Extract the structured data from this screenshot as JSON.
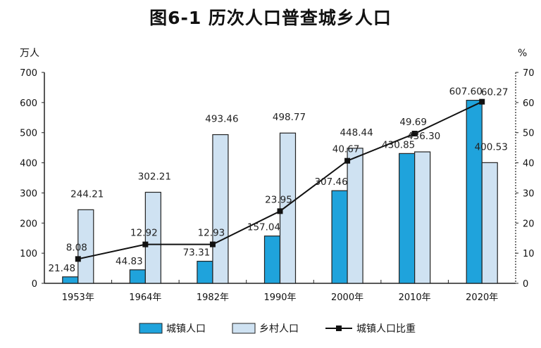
{
  "chart_data": {
    "type": "bar+line",
    "title": "图6-1  历次人口普查城乡人口",
    "ylabel_left": "万人",
    "ylabel_right": "%",
    "ylim_left": [
      0,
      700
    ],
    "ylim_right": [
      0,
      70
    ],
    "yticks_left": [
      0,
      100,
      200,
      300,
      400,
      500,
      600,
      700
    ],
    "yticks_right": [
      0,
      10,
      20,
      30,
      40,
      50,
      60,
      70
    ],
    "categories": [
      "1953年",
      "1964年",
      "1982年",
      "1990年",
      "2000年",
      "2010年",
      "2020年"
    ],
    "series": [
      {
        "name": "城镇人口",
        "kind": "bar",
        "axis": "left",
        "color": "#1fa3dc",
        "values": [
          21.48,
          44.83,
          73.31,
          157.04,
          307.46,
          430.85,
          607.6
        ],
        "labels": [
          "21.48",
          "44.83",
          "73.31",
          "157.04",
          "307.46",
          "430.85",
          "607.60"
        ]
      },
      {
        "name": "乡村人口",
        "kind": "bar",
        "axis": "left",
        "color": "#cfe2f2",
        "values": [
          244.21,
          302.21,
          493.46,
          498.77,
          448.44,
          436.3,
          400.53
        ],
        "labels": [
          "244.21",
          "302.21",
          "493.46",
          "498.77",
          "448.44",
          "436.30",
          "400.53"
        ]
      },
      {
        "name": "城镇人口比重",
        "kind": "line",
        "axis": "right",
        "color": "#111111",
        "values": [
          8.08,
          12.92,
          12.93,
          23.95,
          40.67,
          49.69,
          60.27
        ],
        "labels": [
          "8.08",
          "12.92",
          "12.93",
          "23.95",
          "40.67",
          "49.69",
          "60.27"
        ]
      }
    ],
    "grid": false,
    "legend": "bottom"
  }
}
